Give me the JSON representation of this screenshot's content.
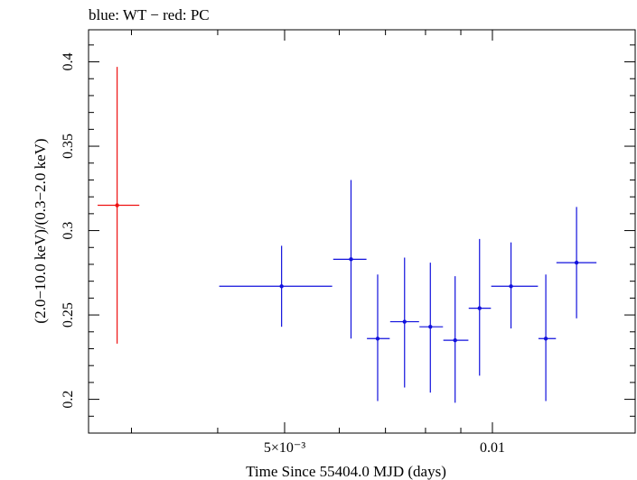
{
  "chart_data": {
    "type": "scatter",
    "title": "blue: WT − red: PC",
    "xlabel": "Time Since 55404.0 MJD (days)",
    "ylabel": "(2.0−10.0 keV)/(0.3−2.0 keV)",
    "xscale": "log",
    "xlim": [
      0.0026,
      0.0161
    ],
    "ylim": [
      0.18,
      0.419
    ],
    "x_major_ticks": [
      {
        "value": 0.005,
        "label": "5×10⁻³"
      },
      {
        "value": 0.01,
        "label": "0.01"
      }
    ],
    "x_minor_ticks": [
      0.003,
      0.004,
      0.006,
      0.007,
      0.008,
      0.009
    ],
    "y_major_ticks": [
      {
        "value": 0.2,
        "label": "0.2"
      },
      {
        "value": 0.25,
        "label": "0.25"
      },
      {
        "value": 0.3,
        "label": "0.3"
      },
      {
        "value": 0.35,
        "label": "0.35"
      },
      {
        "value": 0.4,
        "label": "0.4"
      }
    ],
    "y_minor_step": 0.01,
    "series": [
      {
        "name": "PC",
        "color": "#ee1111",
        "points": [
          {
            "x": 0.00286,
            "xlo": 0.00268,
            "xhi": 0.00308,
            "y": 0.315,
            "ylo": 0.233,
            "yhi": 0.397
          }
        ]
      },
      {
        "name": "WT",
        "color": "#1111dd",
        "points": [
          {
            "x": 0.00495,
            "xlo": 0.00402,
            "xhi": 0.00586,
            "y": 0.267,
            "ylo": 0.243,
            "yhi": 0.291
          },
          {
            "x": 0.00624,
            "xlo": 0.00588,
            "xhi": 0.00657,
            "y": 0.283,
            "ylo": 0.236,
            "yhi": 0.33
          },
          {
            "x": 0.00682,
            "xlo": 0.00658,
            "xhi": 0.0071,
            "y": 0.236,
            "ylo": 0.199,
            "yhi": 0.274
          },
          {
            "x": 0.00746,
            "xlo": 0.00711,
            "xhi": 0.00783,
            "y": 0.246,
            "ylo": 0.207,
            "yhi": 0.284
          },
          {
            "x": 0.00813,
            "xlo": 0.00784,
            "xhi": 0.00848,
            "y": 0.243,
            "ylo": 0.204,
            "yhi": 0.281
          },
          {
            "x": 0.00883,
            "xlo": 0.00849,
            "xhi": 0.00923,
            "y": 0.235,
            "ylo": 0.198,
            "yhi": 0.273
          },
          {
            "x": 0.00958,
            "xlo": 0.00924,
            "xhi": 0.00995,
            "y": 0.254,
            "ylo": 0.214,
            "yhi": 0.295
          },
          {
            "x": 0.01064,
            "xlo": 0.00996,
            "xhi": 0.01164,
            "y": 0.267,
            "ylo": 0.242,
            "yhi": 0.293
          },
          {
            "x": 0.01195,
            "xlo": 0.01166,
            "xhi": 0.01236,
            "y": 0.236,
            "ylo": 0.199,
            "yhi": 0.274
          },
          {
            "x": 0.01324,
            "xlo": 0.01238,
            "xhi": 0.01415,
            "y": 0.281,
            "ylo": 0.248,
            "yhi": 0.314
          }
        ]
      }
    ]
  }
}
